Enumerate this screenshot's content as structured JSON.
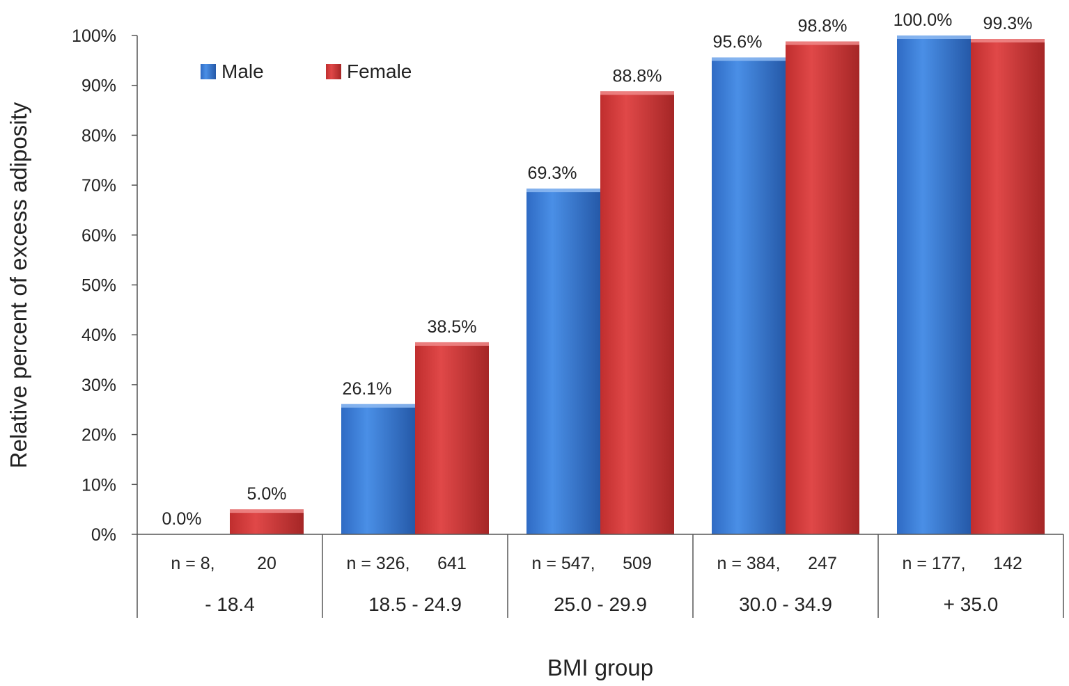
{
  "chart_data": {
    "type": "bar",
    "title": "",
    "xlabel": "BMI group",
    "ylabel": "Relative percent of excess adiposity",
    "ylim": [
      0,
      100
    ],
    "yticks": [
      0,
      10,
      20,
      30,
      40,
      50,
      60,
      70,
      80,
      90,
      100
    ],
    "ytick_labels": [
      "0%",
      "10%",
      "20%",
      "30%",
      "40%",
      "50%",
      "60%",
      "70%",
      "80%",
      "90%",
      "100%"
    ],
    "legend_position": "top-left",
    "categories": [
      "- 18.4",
      "18.5 - 24.9",
      "25.0 - 29.9",
      "30.0 - 34.9",
      "+ 35.0"
    ],
    "sample_sizes": [
      {
        "male": "n = 8,",
        "female": "20"
      },
      {
        "male": "n = 326,",
        "female": "641"
      },
      {
        "male": "n = 547,",
        "female": "509"
      },
      {
        "male": "n = 384,",
        "female": "247"
      },
      {
        "male": "n = 177,",
        "female": "142"
      }
    ],
    "series": [
      {
        "name": "Male",
        "color": "#3B7DD8",
        "values": [
          0.0,
          26.1,
          69.3,
          95.6,
          100.0
        ],
        "labels": [
          "0.0%",
          "26.1%",
          "69.3%",
          "95.6%",
          "100.0%"
        ]
      },
      {
        "name": "Female",
        "color": "#D23A3A",
        "values": [
          5.0,
          38.5,
          88.8,
          98.8,
          99.3
        ],
        "labels": [
          "5.0%",
          "38.5%",
          "88.8%",
          "98.8%",
          "99.3%"
        ]
      }
    ]
  }
}
